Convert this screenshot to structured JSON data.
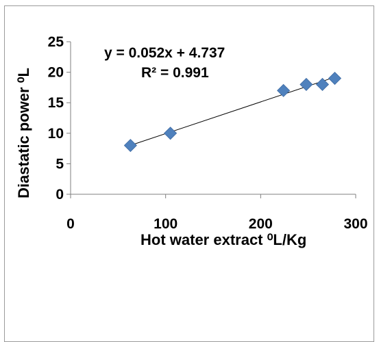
{
  "chart_data": {
    "type": "scatter",
    "x": [
      63,
      105,
      224,
      248,
      265,
      278
    ],
    "y": [
      8,
      10,
      17,
      18,
      18,
      19
    ],
    "xlim": [
      0,
      300
    ],
    "ylim": [
      0,
      25
    ],
    "x_ticks": [
      "0",
      "100",
      "200",
      "300"
    ],
    "y_ticks": [
      "0",
      "5",
      "10",
      "15",
      "20",
      "25"
    ],
    "xlabel": "Hot water extract ⁰L/Kg",
    "ylabel": "Diastatic power ⁰L",
    "trendline": {
      "slope": 0.052,
      "intercept": 4.737,
      "equation": "y = 0.052x + 4.737",
      "r_squared": "R² = 0.991"
    },
    "grid": false,
    "legend": "none",
    "marker_color": "#4F81BD",
    "marker_shape": "diamond",
    "trendline_color": "#000000"
  }
}
